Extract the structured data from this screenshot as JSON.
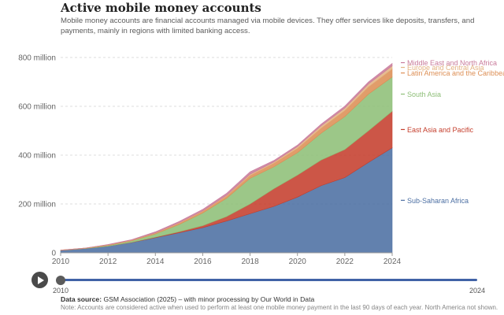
{
  "title": "Active mobile money accounts",
  "subtitle": "Mobile money accounts are financial accounts managed via mobile devices. They offer services like deposits, transfers, and payments, mainly in regions with limited banking access.",
  "timeline": {
    "start_label": "2010",
    "end_label": "2024"
  },
  "source": {
    "label": "Data source:",
    "text": "GSM Association (2025) – with minor processing by Our World in Data"
  },
  "note": "Note: Accounts are considered active when used to perform at least one mobile money payment in the last 90 days of each year. North America not shown.",
  "chart_data": {
    "type": "area",
    "stacked": true,
    "x": [
      2010,
      2011,
      2012,
      2013,
      2014,
      2015,
      2016,
      2017,
      2018,
      2019,
      2020,
      2021,
      2022,
      2023,
      2024
    ],
    "xticks": [
      2010,
      2012,
      2014,
      2016,
      2018,
      2020,
      2022,
      2024
    ],
    "ylim": [
      0,
      800000000
    ],
    "yticks": [
      0,
      200000000,
      400000000,
      600000000,
      800000000
    ],
    "ytick_labels": [
      "0",
      "200 million",
      "400 million",
      "600 million",
      "800 million"
    ],
    "grid": "horizontal-dashed",
    "legend": "right-inline",
    "series": [
      {
        "name": "Sub-Saharan Africa",
        "color": "#4c6fa3",
        "values": [
          10000000,
          17000000,
          27000000,
          42000000,
          62000000,
          82000000,
          103000000,
          130000000,
          160000000,
          190000000,
          228000000,
          275000000,
          308000000,
          370000000,
          430000000
        ]
      },
      {
        "name": "East Asia and Pacific",
        "color": "#c53f2d",
        "values": [
          0,
          0,
          0,
          1000000,
          2000000,
          4000000,
          8000000,
          18000000,
          40000000,
          72000000,
          90000000,
          105000000,
          115000000,
          130000000,
          150000000
        ]
      },
      {
        "name": "South Asia",
        "color": "#8ebf78",
        "values": [
          0,
          1000000,
          3000000,
          6000000,
          13000000,
          30000000,
          52000000,
          75000000,
          105000000,
          90000000,
          92000000,
          110000000,
          135000000,
          150000000,
          140000000
        ]
      },
      {
        "name": "Latin America and the Caribbean",
        "color": "#dd8f55",
        "values": [
          1000000,
          1000000,
          2000000,
          2000000,
          4000000,
          5000000,
          7000000,
          9000000,
          12000000,
          15000000,
          18000000,
          21000000,
          25000000,
          30000000,
          33000000
        ]
      },
      {
        "name": "Europe and Central Asia",
        "color": "#e3b383",
        "values": [
          0,
          0,
          1000000,
          1000000,
          1000000,
          2000000,
          2000000,
          3000000,
          5000000,
          5000000,
          7000000,
          9000000,
          10000000,
          12000000,
          13000000
        ]
      },
      {
        "name": "Middle East and North Africa",
        "color": "#c97c9c",
        "values": [
          0,
          0,
          1000000,
          2000000,
          4000000,
          5000000,
          6000000,
          8000000,
          10000000,
          6000000,
          6000000,
          7000000,
          8000000,
          8000000,
          10000000
        ]
      }
    ]
  }
}
